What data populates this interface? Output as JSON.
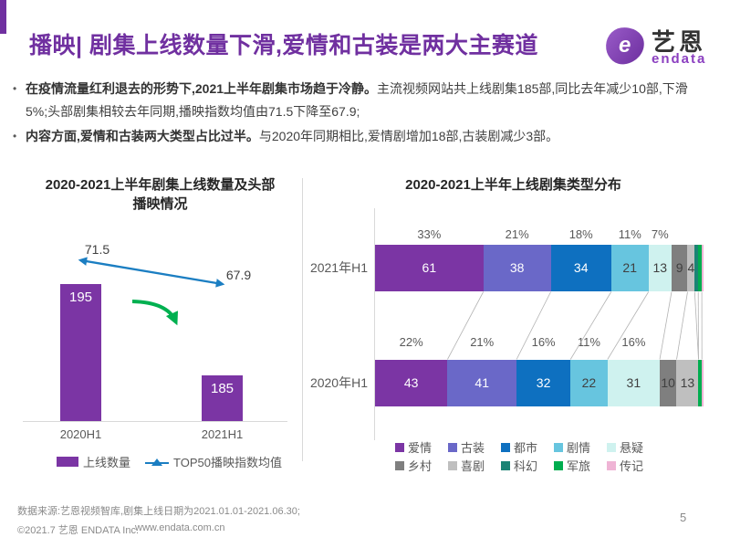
{
  "header": {
    "title": "播映| 剧集上线数量下滑,爱情和古装是两大主赛道",
    "accent_color": "#7030A0",
    "logo": {
      "brand_cn": "艺恩",
      "brand_en": "endata",
      "brand_color": "#8b3fc0"
    }
  },
  "bullets": [
    {
      "bold": "在疫情流量红利退去的形势下,2021上半年剧集市场趋于冷静。",
      "rest": "主流视频网站共上线剧集185部,同比去年减少10部,下滑5%;头部剧集相较去年同期,播映指数均值由71.5下降至67.9;"
    },
    {
      "bold": "内容方面,爱情和古装两大类型占比过半。",
      "rest": "与2020年同期相比,爱情剧增加18部,古装剧减少3部。"
    }
  ],
  "chart_data": [
    {
      "type": "bar",
      "title": "2020-2021上半年剧集上线数量及头部播映情况",
      "categories": [
        "2020H1",
        "2021H1"
      ],
      "series": [
        {
          "name": "上线数量",
          "type": "bar",
          "values": [
            195,
            185
          ],
          "color": "#7B35A4"
        },
        {
          "name": "TOP50播映指数均值",
          "type": "line",
          "values": [
            71.5,
            67.9
          ],
          "color": "#1B7EC2"
        }
      ],
      "bar_ylim": [
        180,
        200
      ],
      "trend_arrow_color": "#00B050",
      "legend_position": "bottom",
      "grid": false
    },
    {
      "type": "bar",
      "subtype": "100%-stacked-horizontal",
      "title": "2020-2021上半年上线剧集类型分布",
      "categories": [
        "2021年H1",
        "2020年H1"
      ],
      "totals": [
        185,
        195
      ],
      "series": [
        {
          "name": "爱情",
          "color": "#7B35A4",
          "label_color": "#ffffff",
          "values": [
            61,
            43
          ]
        },
        {
          "name": "古装",
          "color": "#6A68C8",
          "label_color": "#ffffff",
          "values": [
            38,
            41
          ]
        },
        {
          "name": "都市",
          "color": "#0E70C0",
          "label_color": "#ffffff",
          "values": [
            34,
            32
          ]
        },
        {
          "name": "剧情",
          "color": "#67C5DF",
          "label_color": "#404040",
          "values": [
            21,
            22
          ]
        },
        {
          "name": "悬疑",
          "color": "#CFF2EF",
          "label_color": "#404040",
          "values": [
            13,
            31
          ]
        },
        {
          "name": "乡村",
          "color": "#7F7F7F",
          "label_color": "#404040",
          "values": [
            9,
            10
          ]
        },
        {
          "name": "喜剧",
          "color": "#BFBFBF",
          "label_color": "#404040",
          "values": [
            4,
            13
          ]
        },
        {
          "name": "科幻",
          "color": "#1B8374",
          "label_color": "#404040",
          "values": [
            2,
            0
          ]
        },
        {
          "name": "军旅",
          "color": "#00AD4F",
          "label_color": "#404040",
          "values": [
            2,
            2
          ]
        },
        {
          "name": "传记",
          "color": "#EFB4D5",
          "label_color": "#404040",
          "values": [
            1,
            1
          ]
        }
      ],
      "pct_labels": [
        [
          "33%",
          "21%",
          "18%",
          "11%",
          "7%"
        ],
        [
          "22%",
          "21%",
          "16%",
          "11%",
          "16%"
        ]
      ],
      "legend_rows": [
        [
          "爱情",
          "古装",
          "都市",
          "剧情",
          "悬疑"
        ],
        [
          "乡村",
          "喜剧",
          "科幻",
          "军旅",
          "传记"
        ]
      ],
      "legend_position": "bottom",
      "grid": false
    }
  ],
  "footer": {
    "source": "数据来源:艺恩视频智库,剧集上线日期为2021.01.01-2021.06.30;",
    "copyright": "©2021.7 艺恩 ENDATA Inc.",
    "website": "www.endata.com.cn",
    "page": "5"
  }
}
